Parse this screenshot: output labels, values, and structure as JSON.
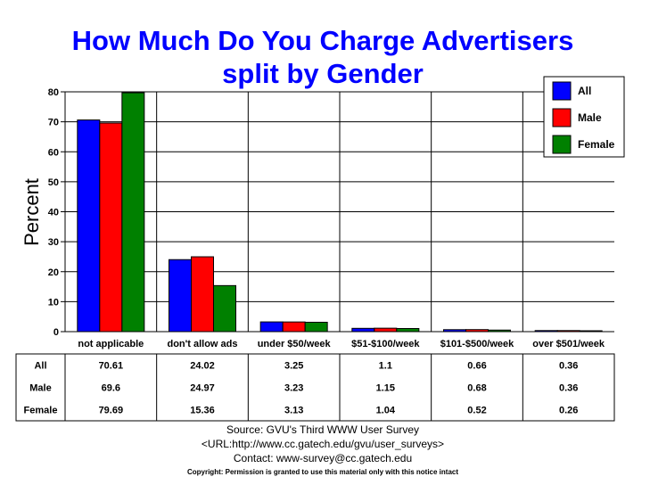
{
  "chart_data": {
    "type": "bar",
    "title_line1": "How Much Do You Charge Advertisers",
    "title_line2": "split by Gender",
    "ylabel": "Percent",
    "xlabel": "",
    "ylim": [
      0,
      80
    ],
    "yticks": [
      "0",
      "10",
      "20",
      "30",
      "40",
      "50",
      "60",
      "70",
      "80"
    ],
    "grid": true,
    "legend_position": "top-right",
    "categories": [
      "not applicable",
      "don't allow ads",
      "under $50/week",
      "$51-$100/week",
      "$101-$500/week",
      "over $501/week"
    ],
    "series": [
      {
        "name": "All",
        "color": "#0000ff",
        "values": [
          70.61,
          24.02,
          3.25,
          1.1,
          0.66,
          0.36
        ],
        "labels": [
          "70.61",
          "24.02",
          "3.25",
          "1.1",
          "0.66",
          "0.36"
        ]
      },
      {
        "name": "Male",
        "color": "#ff0000",
        "values": [
          69.6,
          24.97,
          3.23,
          1.15,
          0.68,
          0.36
        ],
        "labels": [
          "69.6",
          "24.97",
          "3.23",
          "1.15",
          "0.68",
          "0.36"
        ]
      },
      {
        "name": "Female",
        "color": "#008000",
        "values": [
          79.69,
          15.36,
          3.13,
          1.04,
          0.52,
          0.26
        ],
        "labels": [
          "79.69",
          "15.36",
          "3.13",
          "1.04",
          "0.52",
          "0.26"
        ]
      }
    ]
  },
  "footer": {
    "source": "Source: GVU's Third WWW User Survey",
    "url": "<URL:http://www.cc.gatech.edu/gvu/user_surveys>",
    "contact": "Contact: www-survey@cc.gatech.edu",
    "copyright": "Copyright: Permission is granted to use this material only with this notice intact"
  },
  "colors": {
    "title": "#0000ff",
    "text": "#000000",
    "background": "#ffffff"
  }
}
